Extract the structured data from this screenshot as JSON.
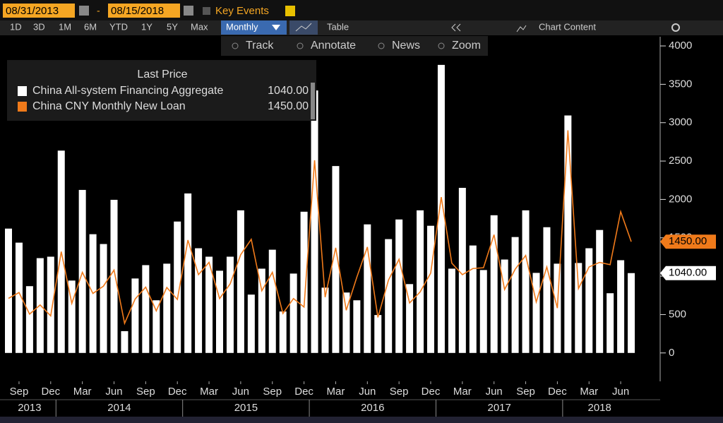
{
  "toolbar": {
    "start_date": "08/31/2013",
    "dash": "-",
    "end_date": "08/15/2018",
    "key_events": "Key Events",
    "ranges": [
      "1D",
      "3D",
      "1M",
      "6M",
      "YTD",
      "1Y",
      "5Y",
      "Max"
    ],
    "period": "Monthly",
    "table": "Table",
    "chart_content": "Chart Content",
    "tools": [
      "Track",
      "Annotate",
      "News",
      "Zoom"
    ]
  },
  "chart_data": {
    "type": "bar_line",
    "legend_title": "Last Price",
    "x": [
      "2013-08",
      "2013-09",
      "2013-10",
      "2013-11",
      "2013-12",
      "2014-01",
      "2014-02",
      "2014-03",
      "2014-04",
      "2014-05",
      "2014-06",
      "2014-07",
      "2014-08",
      "2014-09",
      "2014-10",
      "2014-11",
      "2014-12",
      "2015-01",
      "2015-02",
      "2015-03",
      "2015-04",
      "2015-05",
      "2015-06",
      "2015-07",
      "2015-08",
      "2015-09",
      "2015-10",
      "2015-11",
      "2015-12",
      "2016-01",
      "2016-02",
      "2016-03",
      "2016-04",
      "2016-05",
      "2016-06",
      "2016-07",
      "2016-08",
      "2016-09",
      "2016-10",
      "2016-11",
      "2016-12",
      "2017-01",
      "2017-02",
      "2017-03",
      "2017-04",
      "2017-05",
      "2017-06",
      "2017-07",
      "2017-08",
      "2017-09",
      "2017-10",
      "2017-11",
      "2017-12",
      "2018-01",
      "2018-02",
      "2018-03",
      "2018-04",
      "2018-05",
      "2018-06",
      "2018-07"
    ],
    "series": [
      {
        "name": "China All-system Financing Aggregate",
        "kind": "bar",
        "color": "#ffffff",
        "last_value_label": "1040.00",
        "values": [
          1620,
          1437,
          870,
          1235,
          1254,
          2636,
          943,
          2124,
          1547,
          1419,
          1995,
          284,
          970,
          1144,
          686,
          1163,
          1712,
          2078,
          1364,
          1254,
          1071,
          1254,
          1858,
          760,
          1098,
          1345,
          540,
          1034,
          1840,
          3420,
          851,
          2435,
          787,
          686,
          1675,
          494,
          1483,
          1739,
          897,
          1858,
          1657,
          3753,
          1098,
          2151,
          1400,
          1080,
          1794,
          1217,
          1510,
          1858,
          1043,
          1638,
          1163,
          3094,
          1172,
          1364,
          1602,
          778,
          1208,
          1040
        ]
      },
      {
        "name": "China CNY Monthly New Loan",
        "kind": "line",
        "color": "#f07a1a",
        "last_value_label": "1450.00",
        "values": [
          711,
          787,
          506,
          625,
          483,
          1320,
          645,
          1050,
          775,
          871,
          1080,
          385,
          702,
          857,
          548,
          853,
          697,
          1470,
          1020,
          1180,
          708,
          900,
          1280,
          1480,
          810,
          1050,
          514,
          709,
          598,
          2510,
          727,
          1370,
          556,
          986,
          1380,
          463,
          949,
          1220,
          651,
          795,
          1040,
          2030,
          1170,
          1020,
          1100,
          1110,
          1540,
          826,
          1090,
          1270,
          664,
          1120,
          584,
          2900,
          839,
          1120,
          1180,
          1150,
          1840,
          1450
        ]
      }
    ],
    "ylim": [
      -370,
      4120
    ],
    "yticks": [
      0,
      500,
      1000,
      1500,
      2000,
      2500,
      3000,
      3500,
      4000
    ],
    "month_ticks": [
      {
        "value": "2013-09",
        "label": "Sep"
      },
      {
        "value": "2013-12",
        "label": "Dec"
      },
      {
        "value": "2014-03",
        "label": "Mar"
      },
      {
        "value": "2014-06",
        "label": "Jun"
      },
      {
        "value": "2014-09",
        "label": "Sep"
      },
      {
        "value": "2014-12",
        "label": "Dec"
      },
      {
        "value": "2015-03",
        "label": "Mar"
      },
      {
        "value": "2015-06",
        "label": "Jun"
      },
      {
        "value": "2015-09",
        "label": "Sep"
      },
      {
        "value": "2015-12",
        "label": "Dec"
      },
      {
        "value": "2016-03",
        "label": "Mar"
      },
      {
        "value": "2016-06",
        "label": "Jun"
      },
      {
        "value": "2016-09",
        "label": "Sep"
      },
      {
        "value": "2016-12",
        "label": "Dec"
      },
      {
        "value": "2017-03",
        "label": "Mar"
      },
      {
        "value": "2017-06",
        "label": "Jun"
      },
      {
        "value": "2017-09",
        "label": "Sep"
      },
      {
        "value": "2017-12",
        "label": "Dec"
      },
      {
        "value": "2018-03",
        "label": "Mar"
      },
      {
        "value": "2018-06",
        "label": "Jun"
      }
    ],
    "year_ticks": [
      "2013",
      "2014",
      "2015",
      "2016",
      "2017",
      "2018"
    ]
  }
}
